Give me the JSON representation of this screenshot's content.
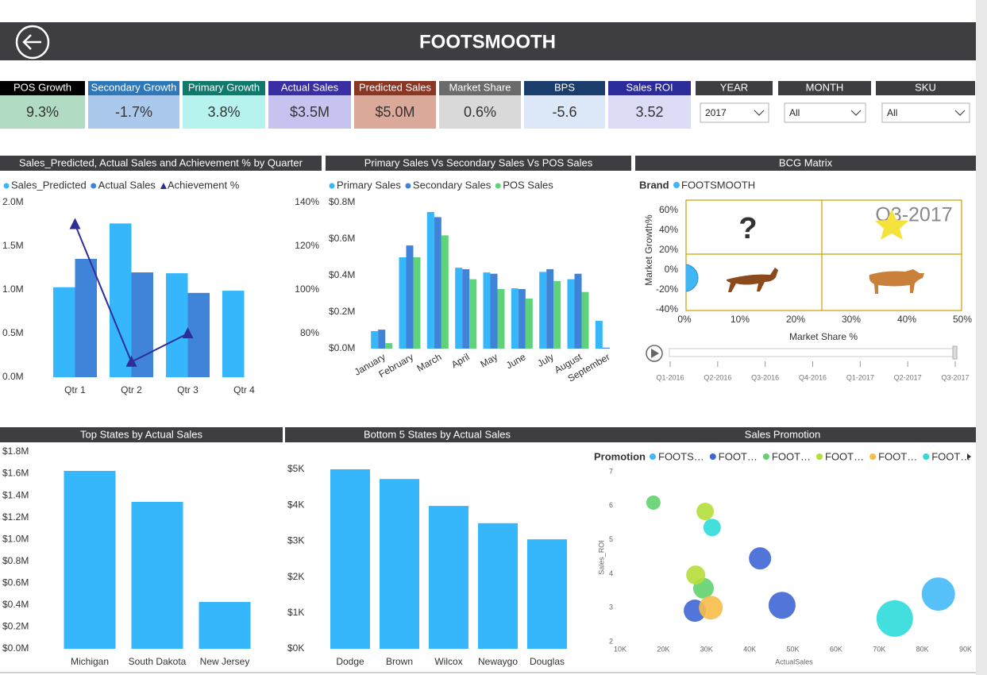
{
  "header": {
    "title": "FOOTSMOOTH"
  },
  "kpis": [
    {
      "label": "POS  Growth",
      "value": "9.3%",
      "header_color": "#000000",
      "color": "#b1dcc3"
    },
    {
      "label": "Secondary Growth",
      "value": "-1.7%",
      "header_color": "#2e78b8",
      "color": "#abc9ed"
    },
    {
      "label": "Primary Growth",
      "value": "3.8%",
      "header_color": "#0f7a6c",
      "color": "#b6f3ee"
    },
    {
      "label": "Actual Sales",
      "value": "$3.5M",
      "header_color": "#3a2fa2",
      "color": "#c6c3f1"
    },
    {
      "label": "Predicted Sales",
      "value": "$5.0M",
      "header_color": "#8a3625",
      "color": "#dba999"
    },
    {
      "label": "Market Share",
      "value": "0.6%",
      "header_color": "#6b6b6b",
      "color": "#d9d9d9"
    },
    {
      "label": "BPS",
      "value": "-5.6",
      "header_color": "#1b3d6b",
      "color": "#dce7f7"
    },
    {
      "label": "Sales ROI",
      "value": "3.52",
      "header_color": "#2b2b9c",
      "color": "#dddcf7"
    }
  ],
  "filters": [
    {
      "label": "YEAR",
      "value": "2017"
    },
    {
      "label": "MONTH",
      "value": "All"
    },
    {
      "label": "SKU",
      "value": "All"
    }
  ],
  "chart_data": [
    {
      "type": "combo",
      "title": "Sales_Predicted, Actual Sales and Achievement % by Quarter",
      "categories": [
        "Qtr 1",
        "Qtr 2",
        "Qtr 3",
        "Qtr 4"
      ],
      "series": [
        {
          "name": "Sales_Predicted",
          "color": "#36b6fb",
          "values": [
            1030000,
            1760000,
            1190000,
            990000
          ]
        },
        {
          "name": "Actual Sales",
          "color": "#3f84d9",
          "values": [
            1355000,
            1200000,
            965000,
            null
          ]
        },
        {
          "name": "Achievement %",
          "color": "#2e2e99",
          "type": "line",
          "axis": "y2",
          "values": [
            130,
            67,
            80,
            null
          ]
        }
      ],
      "ylim": [
        0,
        2000000
      ],
      "yticks": [
        {
          "value": 0,
          "label": "0.0M"
        },
        {
          "value": 500000,
          "label": "0.5M"
        },
        {
          "value": 1000000,
          "label": "1.0M"
        },
        {
          "value": 1500000,
          "label": "1.5M"
        },
        {
          "value": 2000000,
          "label": "2.0M"
        }
      ],
      "y2lim": [
        60,
        140
      ],
      "y2ticks": [
        {
          "value": 80,
          "label": "80%"
        },
        {
          "value": 100,
          "label": "100%"
        },
        {
          "value": 120,
          "label": "120%"
        },
        {
          "value": 140,
          "label": "140%"
        }
      ]
    },
    {
      "type": "bar",
      "title": "Primary Sales Vs Secondary Sales Vs POS Sales",
      "categories": [
        "January",
        "February",
        "March",
        "April",
        "May",
        "June",
        "July",
        "August",
        "September"
      ],
      "series": [
        {
          "name": "Primary Sales",
          "color": "#36b6fb",
          "values": [
            96000,
            500000,
            748000,
            443000,
            417000,
            330000,
            420000,
            380000,
            152000
          ]
        },
        {
          "name": "Secondary Sales",
          "color": "#3f84d9",
          "values": [
            104000,
            565000,
            720000,
            435000,
            410000,
            326000,
            435000,
            410000,
            5000
          ]
        },
        {
          "name": "POS Sales",
          "color": "#5fd37a",
          "values": [
            30000,
            500000,
            620000,
            380000,
            326000,
            274000,
            370000,
            310000,
            null
          ]
        }
      ],
      "ylim": [
        0,
        800000
      ],
      "yticks": [
        {
          "value": 0,
          "label": "$0.0M"
        },
        {
          "value": 200000,
          "label": "$0.2M"
        },
        {
          "value": 400000,
          "label": "$0.4M"
        },
        {
          "value": 600000,
          "label": "$0.6M"
        },
        {
          "value": 800000,
          "label": "$0.8M"
        }
      ]
    },
    {
      "type": "scatter",
      "title": "BCG Matrix",
      "legend_title": "Brand",
      "series": [
        {
          "name": "FOOTSMOOTH",
          "color": "#41b6f5",
          "x": [
            0
          ],
          "y": [
            -8
          ]
        }
      ],
      "xlabel": "Market Share %",
      "ylabel": "Market Growth%",
      "xlim": [
        0,
        50
      ],
      "ylim": [
        -40,
        60
      ],
      "xticks": [
        {
          "value": 0,
          "label": "0%"
        },
        {
          "value": 10,
          "label": "10%"
        },
        {
          "value": 20,
          "label": "20%"
        },
        {
          "value": 30,
          "label": "30%"
        },
        {
          "value": 40,
          "label": "40%"
        },
        {
          "value": 50,
          "label": "50%"
        }
      ],
      "yticks": [
        {
          "value": -40,
          "label": "-40%"
        },
        {
          "value": -20,
          "label": "-20%"
        },
        {
          "value": 0,
          "label": "0%"
        },
        {
          "value": 20,
          "label": "20%"
        },
        {
          "value": 40,
          "label": "40%"
        },
        {
          "value": 60,
          "label": "60%"
        }
      ],
      "annotations": [
        "Q3-2017",
        "?"
      ],
      "play_axis": [
        "Q1-2016",
        "Q2-2016",
        "Q3-2016",
        "Q4-2016",
        "Q1-2017",
        "Q2-2017",
        "Q3-2017"
      ]
    },
    {
      "type": "bar",
      "title": "Top States by Actual Sales",
      "categories": [
        "Michigan",
        "South Dakota",
        "New Jersey"
      ],
      "series": [
        {
          "name": "Actual Sales",
          "color": "#36b6fb",
          "values": [
            1626000,
            1343000,
            428000
          ]
        }
      ],
      "ylim": [
        0,
        1800000
      ],
      "yticks": [
        {
          "value": 0,
          "label": "$0.0M"
        },
        {
          "value": 200000,
          "label": "$0.2M"
        },
        {
          "value": 400000,
          "label": "$0.4M"
        },
        {
          "value": 600000,
          "label": "$0.6M"
        },
        {
          "value": 800000,
          "label": "$0.8M"
        },
        {
          "value": 1000000,
          "label": "$1.0M"
        },
        {
          "value": 1200000,
          "label": "$1.2M"
        },
        {
          "value": 1400000,
          "label": "$1.4M"
        },
        {
          "value": 1600000,
          "label": "$1.6M"
        },
        {
          "value": 1800000,
          "label": "$1.8M"
        }
      ]
    },
    {
      "type": "bar",
      "title": "Bottom 5 States by Actual Sales",
      "categories": [
        "Dodge",
        "Brown",
        "Wilcox",
        "Newaygo",
        "Douglas"
      ],
      "series": [
        {
          "name": "Actual Sales",
          "color": "#36b6fb",
          "values": [
            5000,
            4730,
            3980,
            3500,
            3050
          ]
        }
      ],
      "ylim": [
        0,
        5000
      ],
      "yticks": [
        {
          "value": 0,
          "label": "$0K"
        },
        {
          "value": 1000,
          "label": "$1K"
        },
        {
          "value": 2000,
          "label": "$2K"
        },
        {
          "value": 3000,
          "label": "$3K"
        },
        {
          "value": 4000,
          "label": "$4K"
        },
        {
          "value": 5000,
          "label": "$5K"
        }
      ]
    },
    {
      "type": "bubble",
      "title": "Sales Promotion",
      "legend_title": "Promotion",
      "xlabel": "ActualSales",
      "ylabel": "Sales_ROI",
      "series": [
        {
          "name": "FOOTS…",
          "color": "#44b9f7",
          "x": [
            83700
          ],
          "y": [
            3.4
          ],
          "sizes": [
            441
          ]
        },
        {
          "name": "FOOT…",
          "color": "#3f66d6",
          "x": [
            42400,
            27300,
            47500
          ],
          "y": [
            4.45,
            2.91,
            3.07
          ],
          "sizes": [
            196,
            196,
            289
          ]
        },
        {
          "name": "FOOT…",
          "color": "#62d36e",
          "x": [
            17700,
            29300
          ],
          "y": [
            6.09,
            3.57
          ],
          "sizes": [
            81,
            169
          ]
        },
        {
          "name": "FOOT…",
          "color": "#b5de3c",
          "x": [
            29700,
            27500
          ],
          "y": [
            5.83,
            3.96
          ],
          "sizes": [
            121,
            144
          ]
        },
        {
          "name": "FOOT…",
          "color": "#f8bd4a",
          "x": [
            31000
          ],
          "y": [
            3.0
          ],
          "sizes": [
            225
          ]
        },
        {
          "name": "FOOT…",
          "color": "#2fdada",
          "x": [
            31300,
            73600
          ],
          "y": [
            5.36,
            2.68
          ],
          "sizes": [
            121,
            529
          ]
        }
      ],
      "xlim": [
        10000,
        90000
      ],
      "xticks": [
        {
          "value": 10000,
          "label": "10K"
        },
        {
          "value": 20000,
          "label": "20K"
        },
        {
          "value": 30000,
          "label": "30K"
        },
        {
          "value": 40000,
          "label": "40K"
        },
        {
          "value": 50000,
          "label": "50K"
        },
        {
          "value": 60000,
          "label": "60K"
        },
        {
          "value": 70000,
          "label": "70K"
        },
        {
          "value": 80000,
          "label": "80K"
        },
        {
          "value": 90000,
          "label": "90K"
        }
      ],
      "ylim": [
        2,
        7
      ],
      "yticks": [
        2,
        3,
        4,
        5,
        6,
        7
      ]
    }
  ]
}
